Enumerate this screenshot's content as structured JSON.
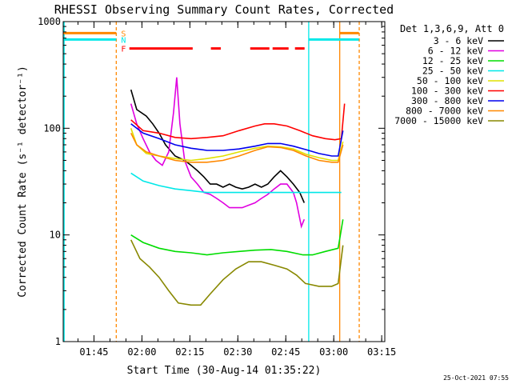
{
  "chart_data": {
    "type": "line",
    "title": "RHESSI Observing Summary Count Rates, Corrected",
    "ylabel": "Corrected Count Rate (s⁻¹ detector⁻¹)",
    "xlabel": "Start Time (30-Aug-14 01:35:22)",
    "yscale": "log",
    "ylim": [
      1,
      1000
    ],
    "xlim_minutes": [
      0,
      100.6
    ],
    "y_ticks": [
      {
        "value": 1,
        "label": "1"
      },
      {
        "value": 10,
        "label": "10"
      },
      {
        "value": 100,
        "label": "100"
      },
      {
        "value": 1000,
        "label": "1000"
      }
    ],
    "x_ticks": [
      {
        "minutes": 9.63,
        "label": "01:45"
      },
      {
        "minutes": 24.63,
        "label": "02:00"
      },
      {
        "minutes": 39.63,
        "label": "02:15"
      },
      {
        "minutes": 54.63,
        "label": "02:30"
      },
      {
        "minutes": 69.63,
        "label": "02:45"
      },
      {
        "minutes": 84.63,
        "label": "03:00"
      },
      {
        "minutes": 99.63,
        "label": "03:15"
      }
    ],
    "legend_header": "Det 1,3,6,9, Att 0",
    "legend_placement": "right",
    "timestamp": "25-Oct-2021 07:55",
    "series": [
      {
        "name": "3 - 6 keV",
        "color": "#000000",
        "points": [
          [
            21.2,
            230
          ],
          [
            23,
            150
          ],
          [
            26,
            130
          ],
          [
            28,
            110
          ],
          [
            30,
            90
          ],
          [
            32,
            70
          ],
          [
            35,
            55
          ],
          [
            38,
            50
          ],
          [
            40,
            45
          ],
          [
            42,
            40
          ],
          [
            44,
            35
          ],
          [
            46,
            30
          ],
          [
            48,
            30
          ],
          [
            50,
            28
          ],
          [
            52,
            30
          ],
          [
            54,
            28
          ],
          [
            56,
            27
          ],
          [
            58,
            28
          ],
          [
            60,
            30
          ],
          [
            62,
            28
          ],
          [
            64,
            30
          ],
          [
            66,
            35
          ],
          [
            68,
            40
          ],
          [
            70,
            35
          ],
          [
            72,
            30
          ],
          [
            74,
            25
          ],
          [
            75.4,
            20
          ]
        ]
      },
      {
        "name": "6 - 12 keV",
        "color": "#e000e0",
        "points": [
          [
            21.2,
            170
          ],
          [
            23,
            110
          ],
          [
            25,
            80
          ],
          [
            27,
            60
          ],
          [
            29,
            50
          ],
          [
            31,
            45
          ],
          [
            33,
            60
          ],
          [
            34.5,
            140
          ],
          [
            35.5,
            300
          ],
          [
            36.5,
            110
          ],
          [
            38,
            50
          ],
          [
            40,
            35
          ],
          [
            42,
            30
          ],
          [
            44,
            25
          ],
          [
            46,
            24
          ],
          [
            48,
            22
          ],
          [
            50,
            20
          ],
          [
            52,
            18
          ],
          [
            54,
            18
          ],
          [
            56,
            18
          ],
          [
            58,
            19
          ],
          [
            60,
            20
          ],
          [
            62,
            22
          ],
          [
            64,
            24
          ],
          [
            66,
            27
          ],
          [
            68,
            30
          ],
          [
            70,
            30
          ],
          [
            72,
            25
          ],
          [
            73,
            20
          ],
          [
            74.5,
            12
          ],
          [
            75.4,
            14
          ]
        ]
      },
      {
        "name": "12 - 25 keV",
        "color": "#00dd00",
        "points": [
          [
            21.2,
            10
          ],
          [
            25,
            8.5
          ],
          [
            30,
            7.5
          ],
          [
            35,
            7
          ],
          [
            40,
            6.8
          ],
          [
            45,
            6.5
          ],
          [
            50,
            6.8
          ],
          [
            55,
            7
          ],
          [
            60,
            7.2
          ],
          [
            65,
            7.3
          ],
          [
            70,
            7
          ],
          [
            75,
            6.5
          ],
          [
            78,
            6.5
          ],
          [
            82,
            7
          ],
          [
            86,
            7.5
          ],
          [
            87.5,
            14
          ]
        ]
      },
      {
        "name": "25 - 50 keV",
        "color": "#00e8e8",
        "points": [
          [
            21.2,
            38
          ],
          [
            25,
            32
          ],
          [
            30,
            29
          ],
          [
            35,
            27
          ],
          [
            40,
            26
          ],
          [
            45,
            25
          ],
          [
            50,
            25
          ],
          [
            55,
            25
          ],
          [
            60,
            25
          ],
          [
            65,
            25
          ],
          [
            70,
            25
          ],
          [
            75,
            25
          ],
          [
            80,
            25
          ],
          [
            85,
            25
          ],
          [
            87,
            25
          ]
        ]
      },
      {
        "name": "50 - 100 keV",
        "color": "#e0e000",
        "points": [
          [
            21.2,
            100
          ],
          [
            23,
            70
          ],
          [
            26,
            58
          ],
          [
            30,
            55
          ],
          [
            35,
            52
          ],
          [
            40,
            50
          ],
          [
            45,
            52
          ],
          [
            50,
            55
          ],
          [
            55,
            60
          ],
          [
            60,
            65
          ],
          [
            64,
            68
          ],
          [
            68,
            67
          ],
          [
            72,
            64
          ],
          [
            76,
            57
          ],
          [
            80,
            53
          ],
          [
            84,
            50
          ],
          [
            86,
            50
          ],
          [
            87.5,
            75
          ]
        ]
      },
      {
        "name": "100 - 300 keV",
        "color": "#ff0000",
        "points": [
          [
            21.2,
            120
          ],
          [
            25,
            95
          ],
          [
            30,
            90
          ],
          [
            35,
            82
          ],
          [
            40,
            80
          ],
          [
            45,
            82
          ],
          [
            50,
            85
          ],
          [
            55,
            95
          ],
          [
            60,
            105
          ],
          [
            63,
            110
          ],
          [
            66,
            110
          ],
          [
            70,
            105
          ],
          [
            74,
            95
          ],
          [
            78,
            85
          ],
          [
            82,
            80
          ],
          [
            85,
            78
          ],
          [
            87,
            80
          ],
          [
            88,
            170
          ]
        ]
      },
      {
        "name": "300 - 800 keV",
        "color": "#0000ee",
        "points": [
          [
            21.2,
            110
          ],
          [
            25,
            90
          ],
          [
            30,
            80
          ],
          [
            35,
            70
          ],
          [
            40,
            65
          ],
          [
            45,
            62
          ],
          [
            50,
            62
          ],
          [
            55,
            64
          ],
          [
            60,
            68
          ],
          [
            64,
            72
          ],
          [
            68,
            72
          ],
          [
            72,
            68
          ],
          [
            76,
            63
          ],
          [
            80,
            58
          ],
          [
            84,
            55
          ],
          [
            86,
            55
          ],
          [
            87.5,
            95
          ]
        ]
      },
      {
        "name": "800 - 7000 keV",
        "color": "#ff8800",
        "points": [
          [
            21.2,
            90
          ],
          [
            23,
            70
          ],
          [
            26,
            60
          ],
          [
            30,
            55
          ],
          [
            35,
            50
          ],
          [
            40,
            48
          ],
          [
            45,
            48
          ],
          [
            50,
            50
          ],
          [
            55,
            55
          ],
          [
            60,
            62
          ],
          [
            64,
            67
          ],
          [
            68,
            66
          ],
          [
            72,
            62
          ],
          [
            76,
            55
          ],
          [
            80,
            50
          ],
          [
            84,
            48
          ],
          [
            86,
            48
          ],
          [
            87.5,
            70
          ]
        ]
      },
      {
        "name": "7000 - 15000 keV",
        "color": "#888800",
        "points": [
          [
            21.2,
            9
          ],
          [
            24,
            6
          ],
          [
            27,
            5
          ],
          [
            30,
            4
          ],
          [
            33,
            3
          ],
          [
            36,
            2.3
          ],
          [
            40,
            2.2
          ],
          [
            43,
            2.2
          ],
          [
            46,
            2.8
          ],
          [
            50,
            3.8
          ],
          [
            54,
            4.8
          ],
          [
            58,
            5.6
          ],
          [
            62,
            5.6
          ],
          [
            66,
            5.2
          ],
          [
            70,
            4.8
          ],
          [
            73,
            4.2
          ],
          [
            75.8,
            3.5
          ],
          [
            76,
            3.5
          ],
          [
            80,
            3.3
          ],
          [
            84,
            3.3
          ],
          [
            86,
            3.5
          ],
          [
            87.5,
            8
          ]
        ]
      }
    ],
    "attenuator_state": {
      "label": "S",
      "color": "#ff8800",
      "segments_minutes": [
        [
          0,
          16.6
        ],
        [
          86.5,
          92.5
        ]
      ],
      "level": 780
    },
    "night_state": {
      "label": "N",
      "color": "#00e8e8",
      "segments_minutes": [
        [
          0,
          16.6
        ],
        [
          76.8,
          92.5
        ]
      ],
      "level": 680
    },
    "flare_state": {
      "label": "F",
      "color": "#ff0000",
      "segments_minutes": [
        [
          20.7,
          40.5
        ],
        [
          46.2,
          49.3
        ],
        [
          58.5,
          64.5
        ],
        [
          65.5,
          70.5
        ],
        [
          72.5,
          75.5
        ]
      ],
      "level": 560
    },
    "vertical_markers": [
      {
        "minutes": 0.3,
        "color": "#00e8e8",
        "style": "solid"
      },
      {
        "minutes": 16.6,
        "color": "#ff8800",
        "style": "dashed"
      },
      {
        "minutes": 76.8,
        "color": "#00e8e8",
        "style": "solid"
      },
      {
        "minutes": 86.5,
        "color": "#ff8800",
        "style": "solid"
      },
      {
        "minutes": 92.6,
        "color": "#ff8800",
        "style": "dashed"
      }
    ]
  }
}
